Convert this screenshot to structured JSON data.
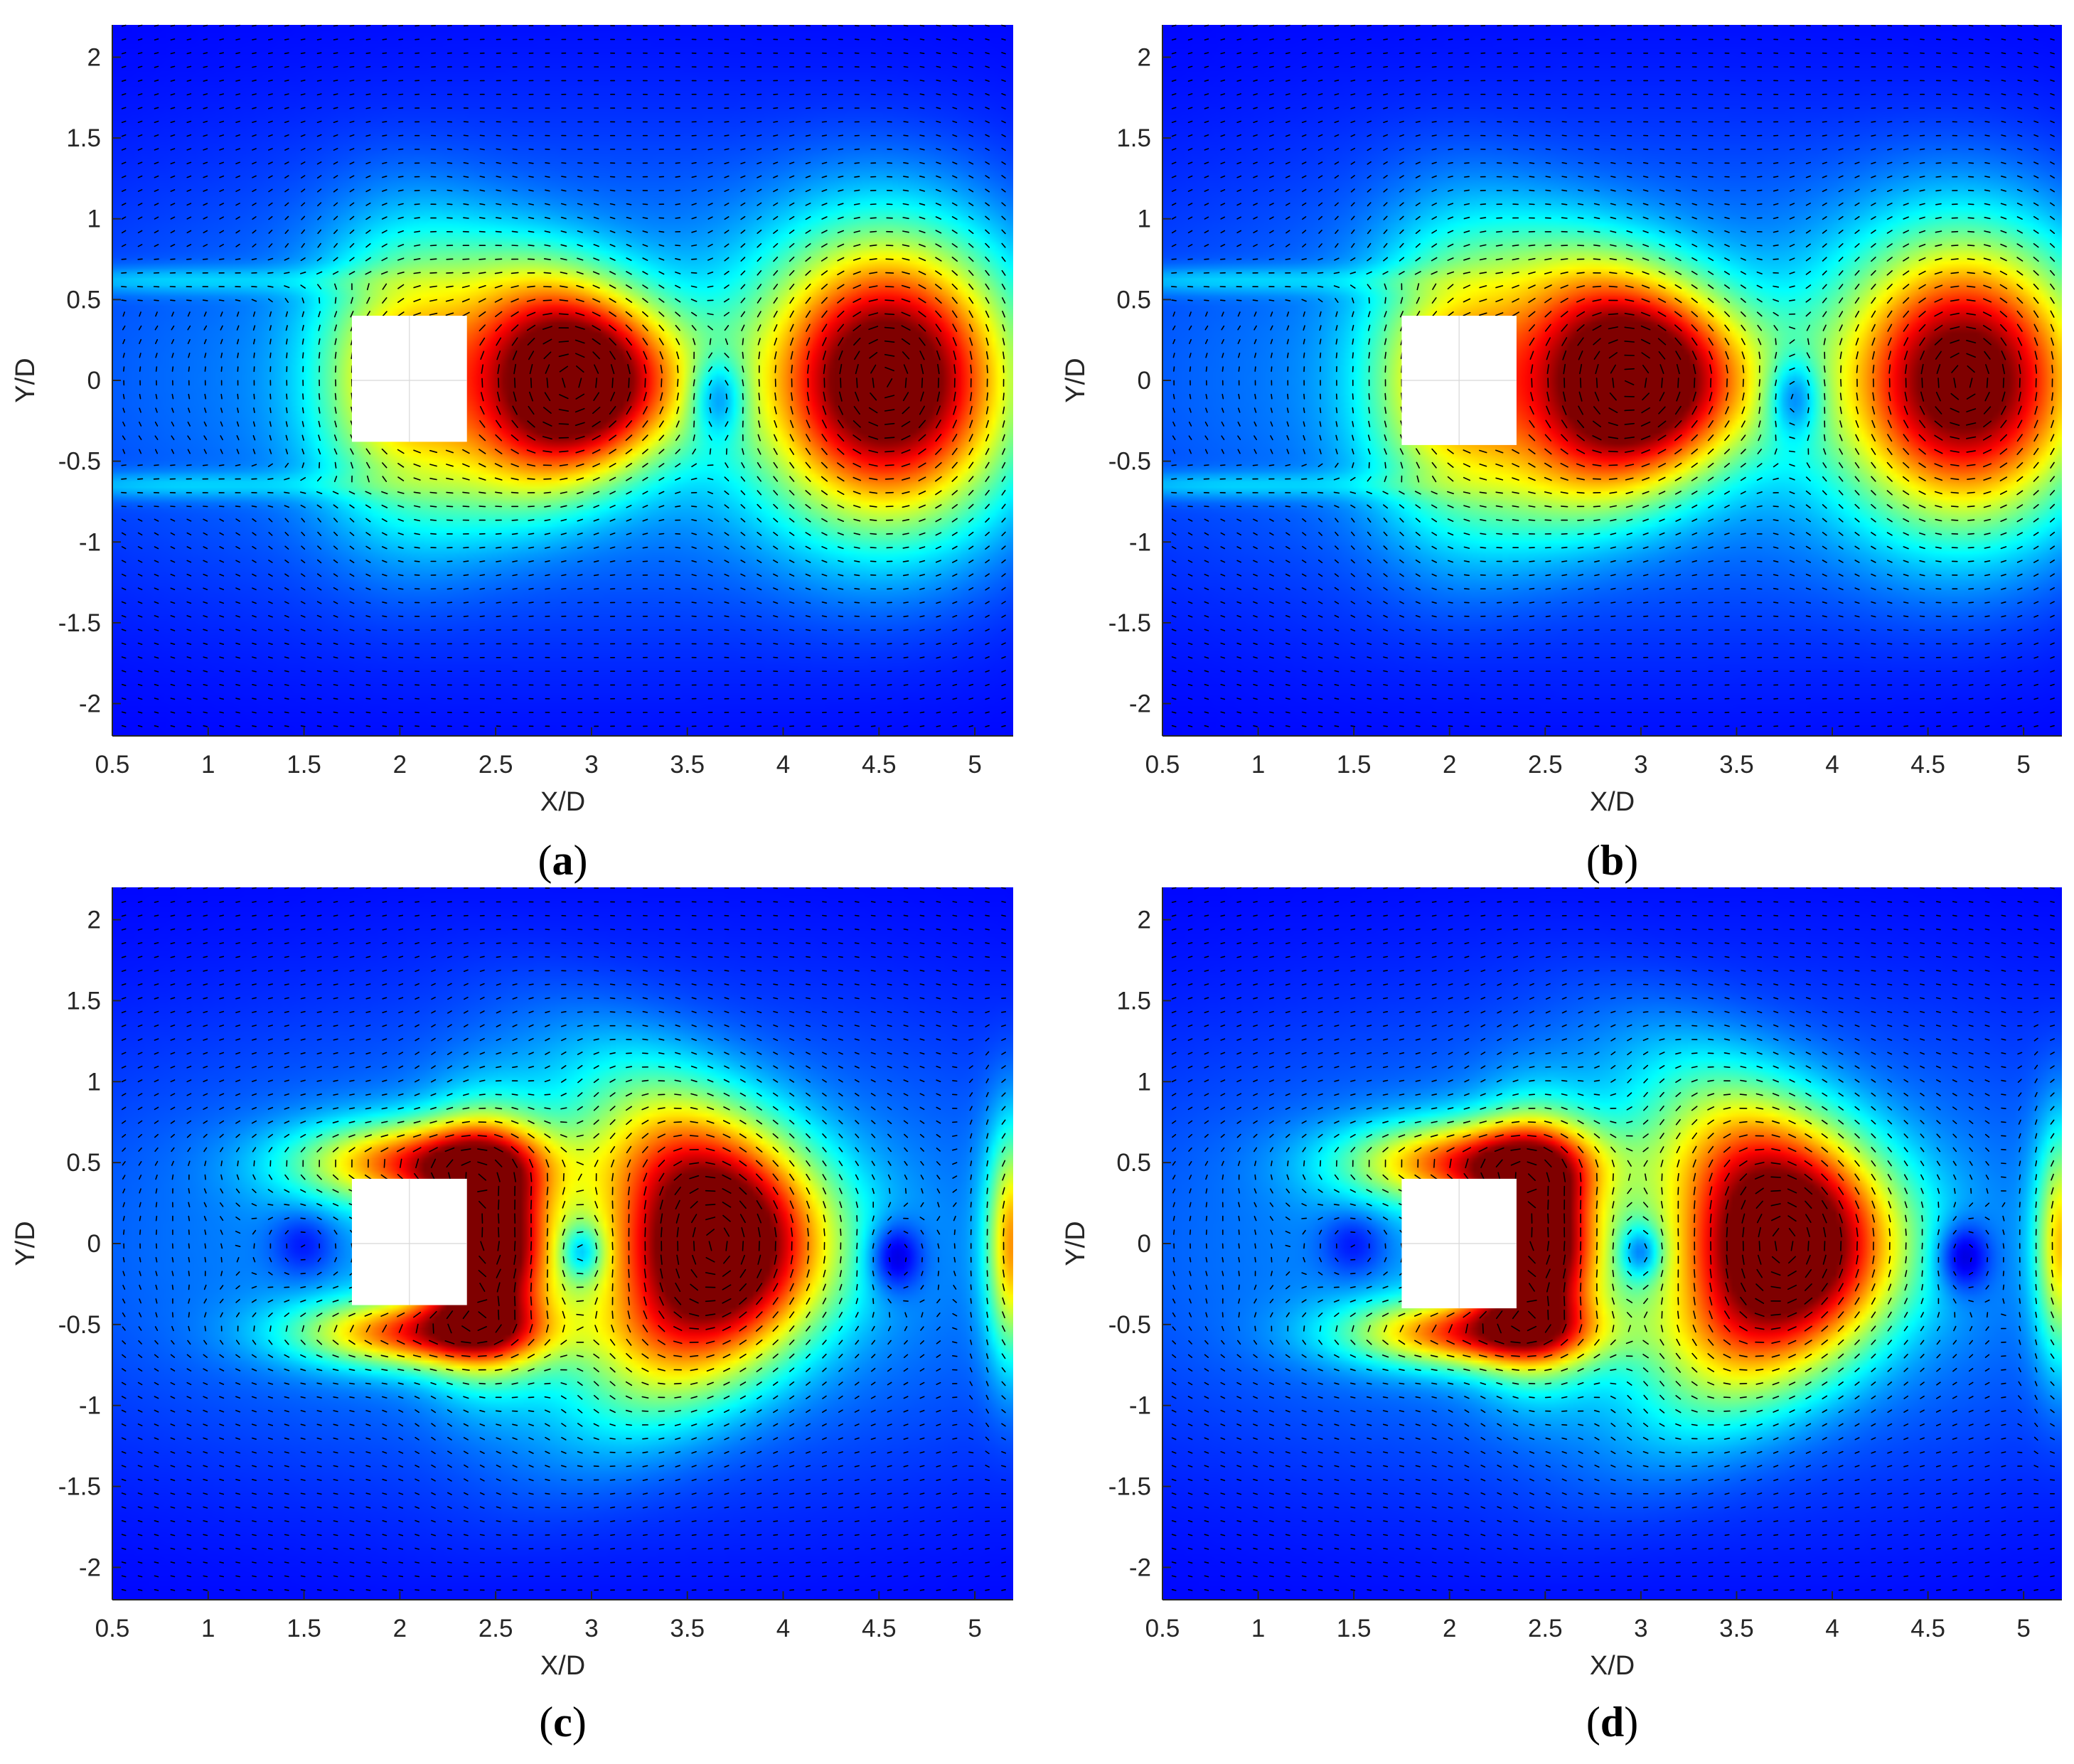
{
  "colormap": [
    "#00007f",
    "#0000ff",
    "#0080ff",
    "#00ffff",
    "#80ff80",
    "#ffff00",
    "#ff8000",
    "#ff0000",
    "#7f0000"
  ],
  "axes_style": {
    "axis_color": "#262626",
    "arrow_color": "#000000",
    "obstacle_color": "#ffffff"
  },
  "chart_data": [
    {
      "id": "a",
      "type": "heatmap",
      "panel_label": {
        "open": "(",
        "letter": "a",
        "close": ")"
      },
      "xlabel": "X/D",
      "ylabel": "Y/D",
      "xlim": [
        0.5,
        5.2
      ],
      "ylim": [
        -2.2,
        2.2
      ],
      "xticks": [
        "0.5",
        "1",
        "1.5",
        "2",
        "2.5",
        "3",
        "3.5",
        "4",
        "4.5",
        "5"
      ],
      "yticks": [
        "-2",
        "-1.5",
        "-1",
        "-0.5",
        "0",
        "0.5",
        "1",
        "1.5",
        "2"
      ],
      "obstacle": {
        "x": [
          1.75,
          2.35
        ],
        "y": [
          -0.38,
          0.4
        ]
      },
      "field": [
        {
          "x": 2.0,
          "y": 0.02,
          "sx": 0.3,
          "sy": 0.55,
          "a": 0.42
        },
        {
          "x": 2.9,
          "y": 0.0,
          "sx": 0.38,
          "sy": 0.45,
          "a": 0.95,
          "curve": -0.35
        },
        {
          "x": 4.55,
          "y": 0.0,
          "sx": 0.45,
          "sy": 0.6,
          "a": 0.9
        },
        {
          "x": 3.0,
          "y": 0.0,
          "sx": 2.2,
          "sy": 1.05,
          "a": 0.18
        },
        {
          "x": 0.8,
          "y": 0.62,
          "sx": 0.7,
          "sy": 0.06,
          "a": 0.12
        },
        {
          "x": 0.8,
          "y": -0.65,
          "sx": 0.7,
          "sy": 0.06,
          "a": 0.12
        },
        {
          "x": 3.66,
          "y": -0.1,
          "sx": 0.1,
          "sy": 0.18,
          "a": -0.25
        }
      ]
    },
    {
      "id": "b",
      "type": "heatmap",
      "panel_label": {
        "open": "(",
        "letter": "b",
        "close": ")"
      },
      "xlabel": "X/D",
      "ylabel": "Y/D",
      "xlim": [
        0.5,
        5.2
      ],
      "ylim": [
        -2.2,
        2.2
      ],
      "xticks": [
        "0.5",
        "1",
        "1.5",
        "2",
        "2.5",
        "3",
        "3.5",
        "4",
        "4.5",
        "5"
      ],
      "yticks": [
        "-2",
        "-1.5",
        "-1",
        "-0.5",
        "0",
        "0.5",
        "1",
        "1.5",
        "2"
      ],
      "obstacle": {
        "x": [
          1.75,
          2.35
        ],
        "y": [
          -0.4,
          0.4
        ]
      },
      "field": [
        {
          "x": 2.0,
          "y": 0.0,
          "sx": 0.3,
          "sy": 0.55,
          "a": 0.42
        },
        {
          "x": 2.95,
          "y": 0.0,
          "sx": 0.42,
          "sy": 0.5,
          "a": 0.95,
          "curve": -0.35
        },
        {
          "x": 4.7,
          "y": 0.0,
          "sx": 0.45,
          "sy": 0.6,
          "a": 0.85
        },
        {
          "x": 3.0,
          "y": 0.0,
          "sx": 2.2,
          "sy": 1.05,
          "a": 0.18
        },
        {
          "x": 0.8,
          "y": 0.62,
          "sx": 0.7,
          "sy": 0.06,
          "a": 0.12
        },
        {
          "x": 0.8,
          "y": -0.65,
          "sx": 0.7,
          "sy": 0.06,
          "a": 0.12
        },
        {
          "x": 3.8,
          "y": -0.1,
          "sx": 0.1,
          "sy": 0.18,
          "a": -0.25
        }
      ]
    },
    {
      "id": "c",
      "type": "heatmap",
      "panel_label": {
        "open": "(",
        "letter": "c",
        "close": ")"
      },
      "xlabel": "X/D",
      "ylabel": "Y/D",
      "xlim": [
        0.5,
        5.2
      ],
      "ylim": [
        -2.2,
        2.2
      ],
      "xticks": [
        "0.5",
        "1",
        "1.5",
        "2",
        "2.5",
        "3",
        "3.5",
        "4",
        "4.5",
        "5"
      ],
      "yticks": [
        "-2",
        "-1.5",
        "-1",
        "-0.5",
        "0",
        "0.5",
        "1",
        "1.5",
        "2"
      ],
      "obstacle": {
        "x": [
          1.75,
          2.35
        ],
        "y": [
          -0.38,
          0.4
        ]
      },
      "field": [
        {
          "x": 2.45,
          "y": 0.0,
          "sx": 0.22,
          "sy": 0.45,
          "a": 0.95
        },
        {
          "x": 2.1,
          "y": 0.5,
          "sx": 0.45,
          "sy": 0.18,
          "a": 0.55
        },
        {
          "x": 2.1,
          "y": -0.55,
          "sx": 0.45,
          "sy": 0.15,
          "a": 0.55
        },
        {
          "x": 3.65,
          "y": 0.0,
          "sx": 0.4,
          "sy": 0.6,
          "a": 0.95,
          "curve": -0.3
        },
        {
          "x": 5.2,
          "y": 0.0,
          "sx": 0.1,
          "sy": 0.5,
          "a": 0.5
        },
        {
          "x": 3.0,
          "y": 0.0,
          "sx": 2.3,
          "sy": 1.05,
          "a": 0.18
        },
        {
          "x": 2.95,
          "y": -0.05,
          "sx": 0.08,
          "sy": 0.12,
          "a": -0.25
        },
        {
          "x": 4.58,
          "y": -0.08,
          "sx": 0.1,
          "sy": 0.15,
          "a": -0.22
        },
        {
          "x": 1.5,
          "y": 0.0,
          "sx": 0.12,
          "sy": 0.15,
          "a": -0.12
        }
      ]
    },
    {
      "id": "d",
      "type": "heatmap",
      "panel_label": {
        "open": "(",
        "letter": "d",
        "close": ")"
      },
      "xlabel": "X/D",
      "ylabel": "Y/D",
      "xlim": [
        0.5,
        5.2
      ],
      "ylim": [
        -2.2,
        2.2
      ],
      "xticks": [
        "0.5",
        "1",
        "1.5",
        "2",
        "2.5",
        "3",
        "3.5",
        "4",
        "4.5",
        "5"
      ],
      "yticks": [
        "-2",
        "-1.5",
        "-1",
        "-0.5",
        "0",
        "0.5",
        "1",
        "1.5",
        "2"
      ],
      "obstacle": {
        "x": [
          1.75,
          2.35
        ],
        "y": [
          -0.4,
          0.4
        ]
      },
      "field": [
        {
          "x": 2.45,
          "y": 0.0,
          "sx": 0.22,
          "sy": 0.45,
          "a": 0.95
        },
        {
          "x": 2.1,
          "y": 0.5,
          "sx": 0.45,
          "sy": 0.18,
          "a": 0.55
        },
        {
          "x": 2.1,
          "y": -0.55,
          "sx": 0.45,
          "sy": 0.15,
          "a": 0.55
        },
        {
          "x": 3.75,
          "y": 0.0,
          "sx": 0.4,
          "sy": 0.6,
          "a": 0.95,
          "curve": -0.3
        },
        {
          "x": 5.2,
          "y": 0.0,
          "sx": 0.1,
          "sy": 0.5,
          "a": 0.45
        },
        {
          "x": 3.0,
          "y": 0.0,
          "sx": 2.3,
          "sy": 1.05,
          "a": 0.18
        },
        {
          "x": 3.0,
          "y": -0.05,
          "sx": 0.08,
          "sy": 0.12,
          "a": -0.25
        },
        {
          "x": 4.68,
          "y": -0.08,
          "sx": 0.1,
          "sy": 0.15,
          "a": -0.22
        },
        {
          "x": 1.5,
          "y": 0.0,
          "sx": 0.12,
          "sy": 0.15,
          "a": -0.12
        }
      ]
    }
  ]
}
